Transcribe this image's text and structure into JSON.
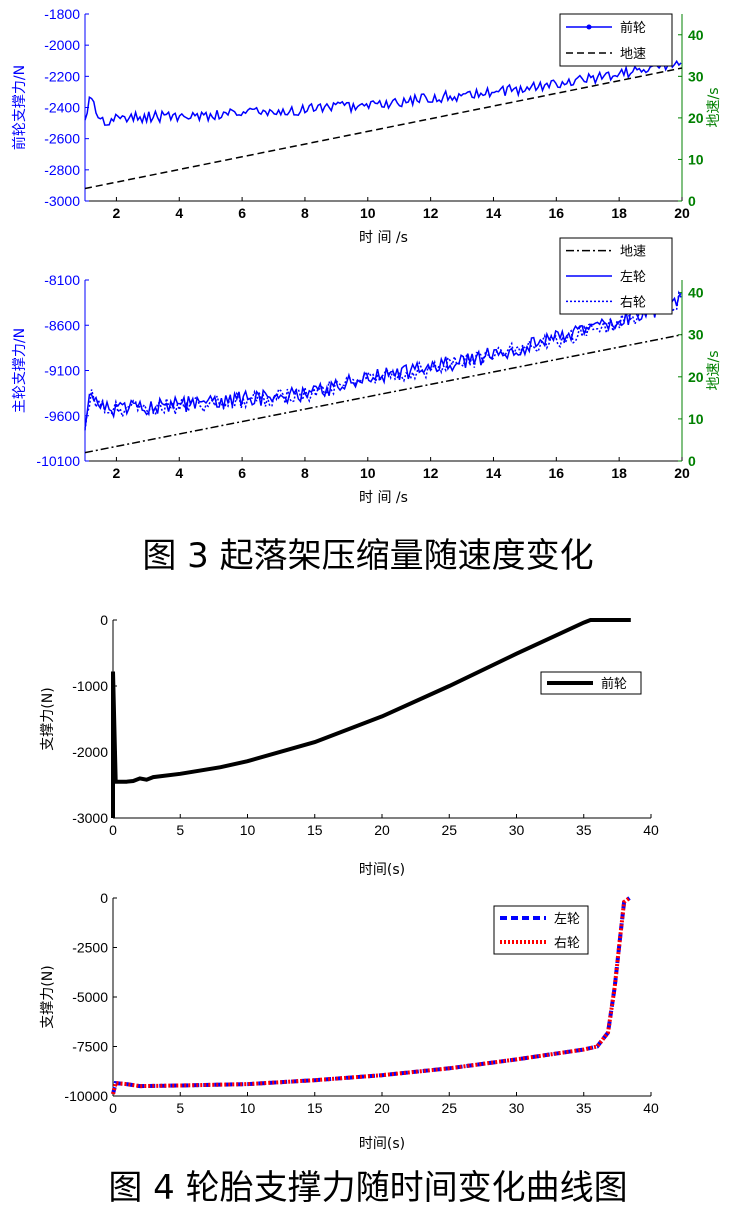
{
  "captions": {
    "fig3": "图 3 起落架压缩量随速度变化",
    "fig4": "图 4 轮胎支撑力随时间变化曲线图"
  },
  "chart_data": [
    {
      "type": "line",
      "dual_axis": true,
      "xlabel": "时 间 /s",
      "ylabel": "前轮支撑力/N",
      "y2label": "地速/s",
      "xlim": [
        1,
        20
      ],
      "ylim": [
        -3000,
        -1800
      ],
      "y2lim": [
        0,
        45
      ],
      "xticks": [
        2,
        4,
        6,
        8,
        10,
        12,
        14,
        16,
        18,
        20
      ],
      "yticks": [
        -3000,
        -2800,
        -2600,
        -2400,
        -2200,
        -2000,
        -1800
      ],
      "y2ticks": [
        0,
        10,
        20,
        30,
        40
      ],
      "legend_position": "top-right",
      "colors": {
        "axis_left": "#0000ff",
        "axis_right": "#008000",
        "ground": "#000000"
      },
      "series": [
        {
          "name": "前轮",
          "axis": "left",
          "style": "solid-dot",
          "color": "#0000ff",
          "x": [
            1,
            1.2,
            1.5,
            2,
            3,
            4,
            5,
            6,
            7,
            8,
            9,
            10,
            11,
            12,
            13,
            14,
            15,
            16,
            17,
            18,
            19,
            20
          ],
          "values": [
            -2450,
            -2330,
            -2500,
            -2470,
            -2460,
            -2455,
            -2450,
            -2440,
            -2430,
            -2410,
            -2400,
            -2390,
            -2370,
            -2340,
            -2320,
            -2300,
            -2280,
            -2250,
            -2220,
            -2180,
            -2150,
            -2100
          ]
        },
        {
          "name": "地速",
          "axis": "right",
          "style": "dashed",
          "color": "#000000",
          "x": [
            1,
            20
          ],
          "values": [
            3,
            32
          ]
        }
      ]
    },
    {
      "type": "line",
      "dual_axis": true,
      "xlabel": "时 间 /s",
      "ylabel": "主轮支撑力/N",
      "y2label": "地速/s",
      "xlim": [
        1,
        20
      ],
      "ylim": [
        -10100,
        -8100
      ],
      "y2lim": [
        0,
        43
      ],
      "xticks": [
        2,
        4,
        6,
        8,
        10,
        12,
        14,
        16,
        18,
        20
      ],
      "yticks": [
        -10100,
        -9600,
        -9100,
        -8600,
        -8100
      ],
      "y2ticks": [
        0,
        10,
        20,
        30,
        40
      ],
      "legend_position": "top-right",
      "colors": {
        "axis_left": "#0000ff",
        "axis_right": "#008000",
        "ground": "#000000"
      },
      "series": [
        {
          "name": "地速",
          "axis": "right",
          "style": "dashdot",
          "color": "#000000",
          "x": [
            1,
            20
          ],
          "values": [
            2,
            30
          ]
        },
        {
          "name": "左轮",
          "axis": "left",
          "style": "solid",
          "color": "#0000ff",
          "x": [
            1,
            1.2,
            1.5,
            2,
            3,
            4,
            5,
            6,
            7,
            8,
            9,
            10,
            11,
            12,
            13,
            14,
            15,
            16,
            17,
            18,
            19,
            20
          ],
          "values": [
            -9700,
            -9300,
            -9500,
            -9520,
            -9500,
            -9480,
            -9450,
            -9420,
            -9390,
            -9350,
            -9280,
            -9180,
            -9130,
            -9070,
            -9000,
            -8920,
            -8850,
            -8750,
            -8650,
            -8550,
            -8450,
            -8300
          ]
        },
        {
          "name": "右轮",
          "axis": "left",
          "style": "dotted",
          "color": "#0000ff",
          "x": [
            1,
            1.2,
            1.5,
            2,
            3,
            4,
            5,
            6,
            7,
            8,
            9,
            10,
            11,
            12,
            13,
            14,
            15,
            16,
            17,
            18,
            19,
            20
          ],
          "values": [
            -9720,
            -9320,
            -9520,
            -9530,
            -9510,
            -9490,
            -9460,
            -9430,
            -9400,
            -9360,
            -9290,
            -9190,
            -9140,
            -9080,
            -9010,
            -8930,
            -8860,
            -8760,
            -8660,
            -8560,
            -8460,
            -8310
          ]
        }
      ]
    },
    {
      "type": "line",
      "xlabel": "时间(s)",
      "ylabel": "支撑力(N)",
      "xlim": [
        0,
        40
      ],
      "ylim": [
        -3000,
        0
      ],
      "xticks": [
        0,
        5,
        10,
        15,
        20,
        25,
        30,
        35,
        40
      ],
      "yticks": [
        -3000,
        -2000,
        -1000,
        0
      ],
      "legend_position": "top-right",
      "series": [
        {
          "name": "前轮",
          "color": "#000000",
          "style": "solid-thick",
          "x": [
            0,
            0,
            0.2,
            1,
            1.5,
            2,
            2.5,
            3,
            5,
            8,
            10,
            15,
            20,
            25,
            30,
            35,
            35.5,
            38.5
          ],
          "values": [
            -3000,
            -780,
            -2450,
            -2450,
            -2440,
            -2400,
            -2420,
            -2380,
            -2330,
            -2230,
            -2140,
            -1850,
            -1460,
            -1000,
            -510,
            -40,
            0,
            0
          ]
        }
      ]
    },
    {
      "type": "line",
      "xlabel": "时间(s)",
      "ylabel": "支撑力(N)",
      "xlim": [
        0,
        40
      ],
      "ylim": [
        -10000,
        0
      ],
      "xticks": [
        0,
        5,
        10,
        15,
        20,
        25,
        30,
        35,
        40
      ],
      "yticks": [
        -10000,
        -7500,
        -5000,
        -2500,
        0
      ],
      "legend_position": "top-right",
      "series": [
        {
          "name": "左轮",
          "color": "#0000ff",
          "style": "dashed-thick",
          "x": [
            0,
            0.2,
            1,
            2,
            5,
            10,
            15,
            20,
            25,
            30,
            35,
            36,
            36.8,
            37.3,
            37.7,
            38,
            38.4
          ],
          "values": [
            -9900,
            -9350,
            -9400,
            -9500,
            -9470,
            -9400,
            -9200,
            -8950,
            -8600,
            -8150,
            -7650,
            -7500,
            -6800,
            -4500,
            -2000,
            -200,
            0
          ]
        },
        {
          "name": "右轮",
          "color": "#ff0000",
          "style": "dotted-thick",
          "x": [
            0,
            0.2,
            1,
            2,
            5,
            10,
            15,
            20,
            25,
            30,
            35,
            36,
            36.8,
            37.3,
            37.7,
            38,
            38.4
          ],
          "values": [
            -9900,
            -9350,
            -9400,
            -9500,
            -9470,
            -9400,
            -9200,
            -8950,
            -8600,
            -8150,
            -7650,
            -7500,
            -6800,
            -4500,
            -2000,
            -200,
            0
          ]
        }
      ]
    }
  ]
}
